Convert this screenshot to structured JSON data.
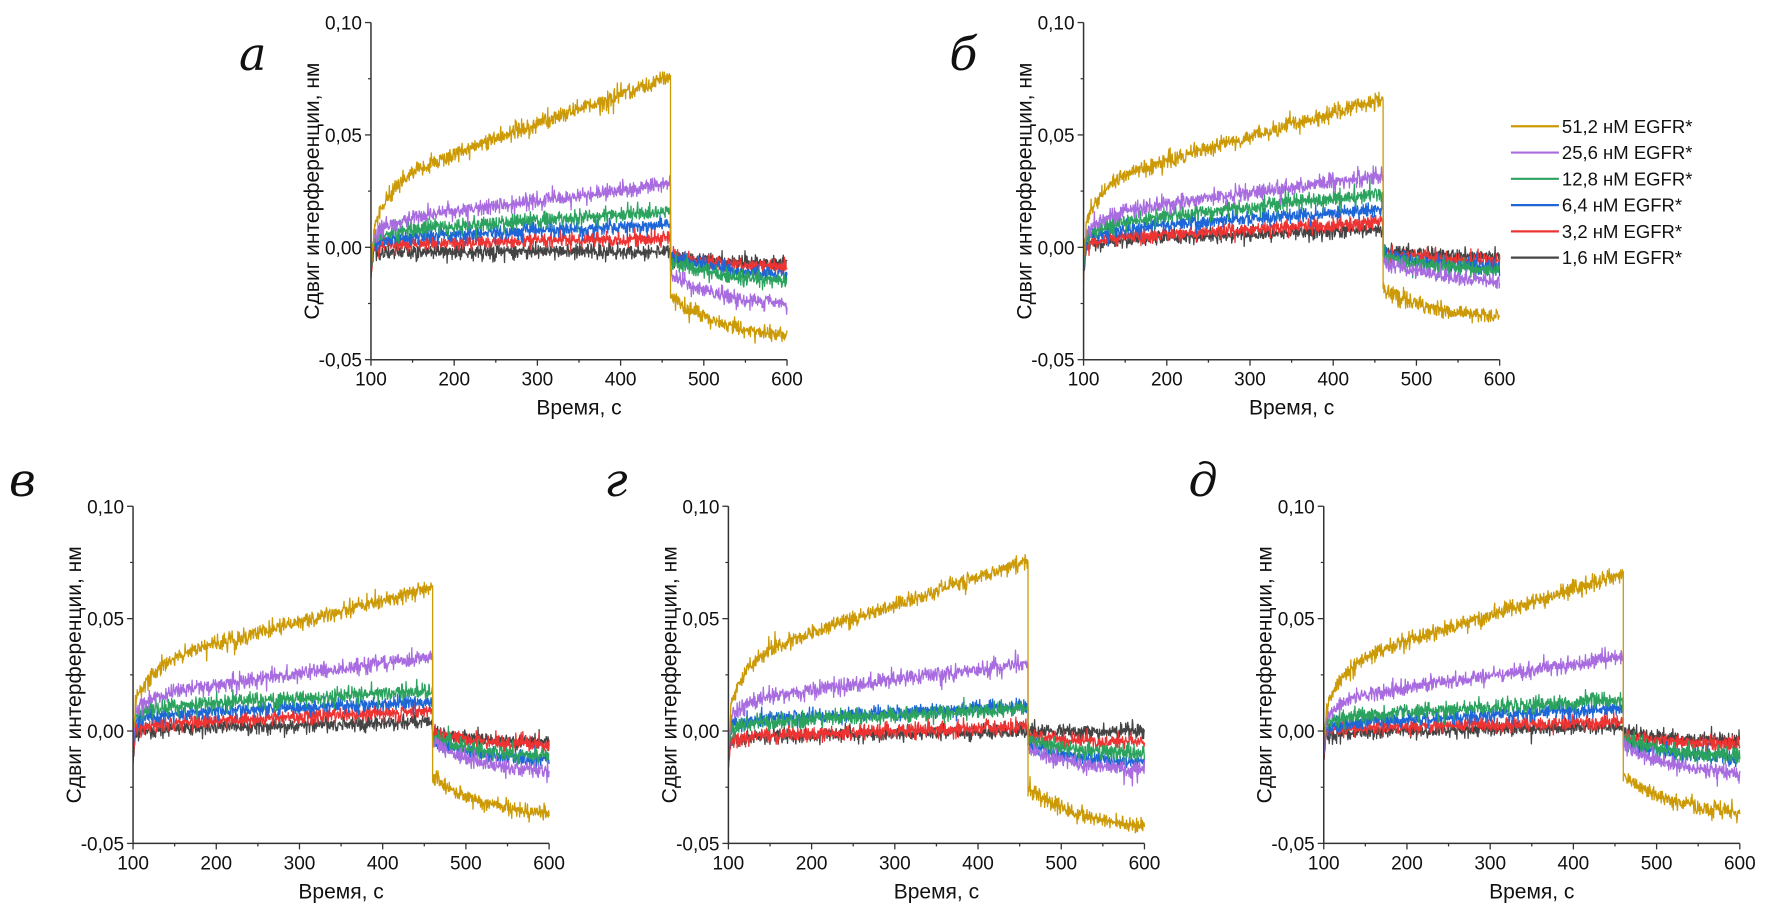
{
  "figure": {
    "legend": [
      {
        "label": "51,2 нМ EGFR*",
        "color": "#CC9A06"
      },
      {
        "label": "25,6 нМ EGFR*",
        "color": "#A86CE0"
      },
      {
        "label": "12,8 нМ EGFR*",
        "color": "#2BA35E"
      },
      {
        "label": "6,4 нМ EGFR*",
        "color": "#1E66D8"
      },
      {
        "label": "3,2 нМ EGFR*",
        "color": "#EE3333"
      },
      {
        "label": "1,6 нМ EGFR*",
        "color": "#444444"
      }
    ]
  },
  "chart_data": [
    {
      "panel": "а",
      "type": "line",
      "xlabel": "Время, с",
      "ylabel": "Сдвиг интерференции, нм",
      "xlim": [
        100,
        600
      ],
      "ylim": [
        -0.05,
        0.1
      ],
      "xticks": [
        "100",
        "200",
        "300",
        "400",
        "500",
        "600"
      ],
      "yticks": [
        "-0,05",
        "0,00",
        "0,05",
        "0,10"
      ],
      "association_end_x": 460,
      "series": [
        {
          "name": "51,2 нМ EGFR*",
          "start": 0.003,
          "assoc_end": 0.076,
          "dissoc_start": -0.022,
          "end": -0.039,
          "noise": 0.0022
        },
        {
          "name": "25,6 нМ EGFR*",
          "start": 0.003,
          "assoc_end": 0.028,
          "dissoc_start": -0.012,
          "end": -0.025,
          "noise": 0.0022
        },
        {
          "name": "12,8 нМ EGFR*",
          "start": 0.002,
          "assoc_end": 0.016,
          "dissoc_start": -0.006,
          "end": -0.015,
          "noise": 0.0022
        },
        {
          "name": "6,4 нМ EGFR*",
          "start": 0.001,
          "assoc_end": 0.01,
          "dissoc_start": -0.004,
          "end": -0.012,
          "noise": 0.002
        },
        {
          "name": "3,2 нМ EGFR*",
          "start": 0.0,
          "assoc_end": 0.004,
          "dissoc_start": -0.003,
          "end": -0.009,
          "noise": 0.002
        },
        {
          "name": "1,6 нМ EGFR*",
          "start": -0.002,
          "assoc_end": -0.002,
          "dissoc_start": -0.004,
          "end": -0.007,
          "noise": 0.002
        }
      ]
    },
    {
      "panel": "б",
      "type": "line",
      "xlabel": "Время, с",
      "ylabel": "Сдвиг интерференции, нм",
      "xlim": [
        100,
        600
      ],
      "ylim": [
        -0.05,
        0.1
      ],
      "xticks": [
        "100",
        "200",
        "300",
        "400",
        "500",
        "600"
      ],
      "yticks": [
        "-0,05",
        "0,00",
        "0,05",
        "0,10"
      ],
      "association_end_x": 460,
      "series": [
        {
          "name": "51,2 нМ EGFR*",
          "start": 0.008,
          "assoc_end": 0.066,
          "dissoc_start": -0.018,
          "end": -0.031,
          "noise": 0.0022
        },
        {
          "name": "25,6 нМ EGFR*",
          "start": 0.005,
          "assoc_end": 0.032,
          "dissoc_start": -0.006,
          "end": -0.015,
          "noise": 0.0022
        },
        {
          "name": "12,8 нМ EGFR*",
          "start": 0.003,
          "assoc_end": 0.024,
          "dissoc_start": -0.004,
          "end": -0.01,
          "noise": 0.0022
        },
        {
          "name": "6,4 нМ EGFR*",
          "start": 0.002,
          "assoc_end": 0.017,
          "dissoc_start": -0.003,
          "end": -0.009,
          "noise": 0.002
        },
        {
          "name": "3,2 нМ EGFR*",
          "start": 0.0,
          "assoc_end": 0.011,
          "dissoc_start": -0.002,
          "end": -0.006,
          "noise": 0.002
        },
        {
          "name": "1,6 нМ EGFR*",
          "start": 0.0,
          "assoc_end": 0.008,
          "dissoc_start": -0.001,
          "end": -0.004,
          "noise": 0.002
        }
      ]
    },
    {
      "panel": "в",
      "type": "line",
      "xlabel": "Время, с",
      "ylabel": "Сдвиг интерференции, нм",
      "xlim": [
        100,
        600
      ],
      "ylim": [
        -0.05,
        0.1
      ],
      "xticks": [
        "100",
        "200",
        "300",
        "400",
        "500",
        "600"
      ],
      "yticks": [
        "-0,05",
        "0,00",
        "0,05",
        "0,10"
      ],
      "association_end_x": 460,
      "series": [
        {
          "name": "51,2 нМ EGFR*",
          "start": 0.01,
          "assoc_end": 0.064,
          "dissoc_start": -0.02,
          "end": -0.037,
          "noise": 0.0022
        },
        {
          "name": "25,6 нМ EGFR*",
          "start": 0.007,
          "assoc_end": 0.033,
          "dissoc_start": -0.005,
          "end": -0.018,
          "noise": 0.0022
        },
        {
          "name": "12,8 нМ EGFR*",
          "start": 0.006,
          "assoc_end": 0.018,
          "dissoc_start": -0.003,
          "end": -0.011,
          "noise": 0.0022
        },
        {
          "name": "6,4 нМ EGFR*",
          "start": 0.004,
          "assoc_end": 0.013,
          "dissoc_start": -0.004,
          "end": -0.013,
          "noise": 0.002
        },
        {
          "name": "3,2 нМ EGFR*",
          "start": 0.0,
          "assoc_end": 0.009,
          "dissoc_start": -0.001,
          "end": -0.006,
          "noise": 0.002
        },
        {
          "name": "1,6 нМ EGFR*",
          "start": -0.001,
          "assoc_end": 0.004,
          "dissoc_start": -0.001,
          "end": -0.005,
          "noise": 0.002
        }
      ]
    },
    {
      "panel": "г",
      "type": "line",
      "xlabel": "Время, с",
      "ylabel": "Сдвиг интерференции, нм",
      "xlim": [
        100,
        600
      ],
      "ylim": [
        -0.05,
        0.1
      ],
      "xticks": [
        "100",
        "200",
        "300",
        "400",
        "500",
        "600"
      ],
      "yticks": [
        "-0,05",
        "0,00",
        "0,05",
        "0,10"
      ],
      "association_end_x": 460,
      "series": [
        {
          "name": "51,2 нМ EGFR*",
          "start": 0.008,
          "assoc_end": 0.076,
          "dissoc_start": -0.025,
          "end": -0.042,
          "noise": 0.0022
        },
        {
          "name": "25,6 нМ EGFR*",
          "start": 0.005,
          "assoc_end": 0.03,
          "dissoc_start": -0.008,
          "end": -0.017,
          "noise": 0.0022
        },
        {
          "name": "12,8 нМ EGFR*",
          "start": 0.0,
          "assoc_end": 0.01,
          "dissoc_start": -0.004,
          "end": -0.01,
          "noise": 0.0022
        },
        {
          "name": "6,4 нМ EGFR*",
          "start": 0.001,
          "assoc_end": 0.011,
          "dissoc_start": -0.006,
          "end": -0.014,
          "noise": 0.002
        },
        {
          "name": "3,2 нМ EGFR*",
          "start": -0.005,
          "assoc_end": 0.002,
          "dissoc_start": -0.002,
          "end": -0.005,
          "noise": 0.002
        },
        {
          "name": "1,6 нМ EGFR*",
          "start": -0.004,
          "assoc_end": 0.0,
          "dissoc_start": 0.0,
          "end": 0.0,
          "noise": 0.002
        }
      ]
    },
    {
      "panel": "д",
      "type": "line",
      "xlabel": "Время, с",
      "ylabel": "Сдвиг интерференции, нм",
      "xlim": [
        100,
        600
      ],
      "ylim": [
        -0.05,
        0.1
      ],
      "xticks": [
        "100",
        "200",
        "300",
        "400",
        "500",
        "600"
      ],
      "yticks": [
        "-0,05",
        "0,00",
        "0,05",
        "0,10"
      ],
      "association_end_x": 460,
      "series": [
        {
          "name": "51,2 нМ EGFR*",
          "start": 0.006,
          "assoc_end": 0.07,
          "dissoc_start": -0.02,
          "end": -0.036,
          "noise": 0.0022
        },
        {
          "name": "25,6 нМ EGFR*",
          "start": 0.004,
          "assoc_end": 0.033,
          "dissoc_start": -0.006,
          "end": -0.019,
          "noise": 0.0022
        },
        {
          "name": "12,8 нМ EGFR*",
          "start": 0.002,
          "assoc_end": 0.014,
          "dissoc_start": -0.004,
          "end": -0.011,
          "noise": 0.0022
        },
        {
          "name": "6,4 нМ EGFR*",
          "start": 0.0,
          "assoc_end": 0.01,
          "dissoc_start": -0.005,
          "end": -0.012,
          "noise": 0.002
        },
        {
          "name": "3,2 нМ EGFR*",
          "start": 0.0,
          "assoc_end": 0.004,
          "dissoc_start": -0.002,
          "end": -0.006,
          "noise": 0.002
        },
        {
          "name": "1,6 нМ EGFR*",
          "start": -0.002,
          "assoc_end": 0.002,
          "dissoc_start": -0.001,
          "end": -0.004,
          "noise": 0.002
        }
      ]
    }
  ]
}
